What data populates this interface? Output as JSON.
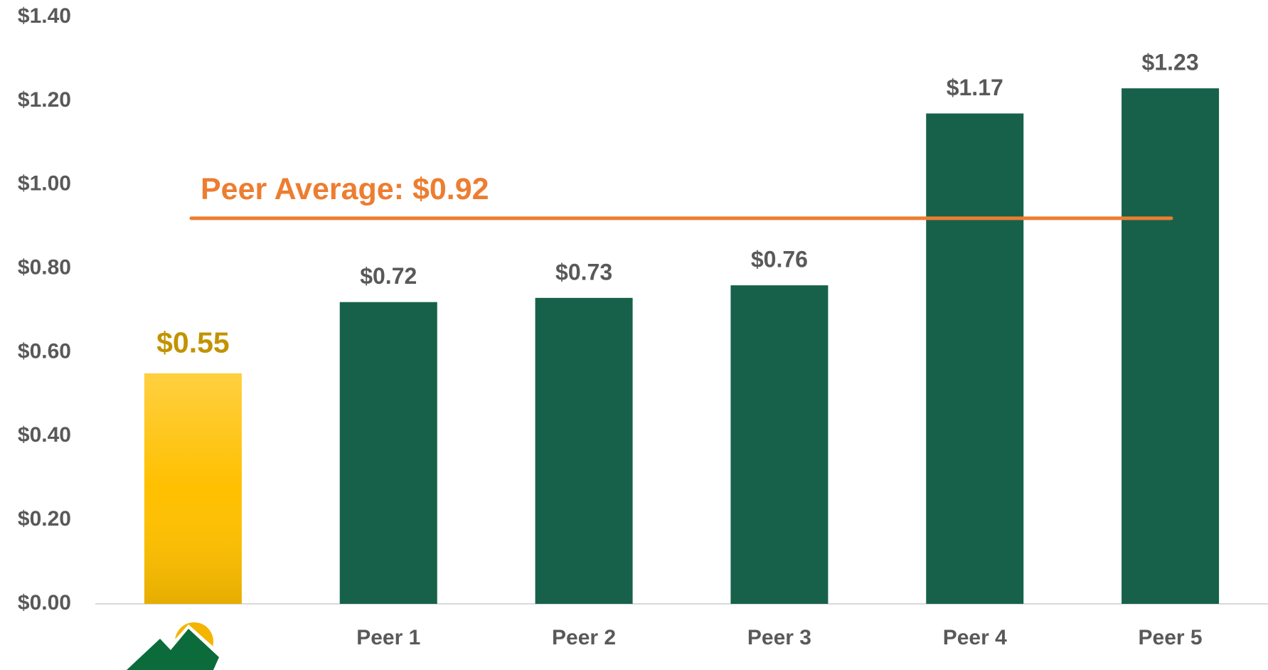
{
  "chart_data": {
    "type": "bar",
    "categories": [
      null,
      "Peer 1",
      "Peer 2",
      "Peer 3",
      "Peer 4",
      "Peer 5"
    ],
    "values": [
      0.55,
      0.72,
      0.73,
      0.76,
      1.17,
      1.23
    ],
    "value_labels": [
      "$0.55",
      "$0.72",
      "$0.73",
      "$0.76",
      "$1.17",
      "$1.23"
    ],
    "colors": [
      "#ffc000",
      "#17614b",
      "#17614b",
      "#17614b",
      "#17614b",
      "#17614b"
    ],
    "value_label_colors": [
      "#c29300",
      "#595959",
      "#595959",
      "#595959",
      "#595959",
      "#595959"
    ],
    "ylim": [
      0,
      1.4
    ],
    "yticks": [
      {
        "value": 0,
        "label": "$0.00"
      },
      {
        "value": 0.2,
        "label": "$0.20"
      },
      {
        "value": 0.4,
        "label": "$0.40"
      },
      {
        "value": 0.6,
        "label": "$0.60"
      },
      {
        "value": 0.8,
        "label": "$0.80"
      },
      {
        "value": 1.0,
        "label": "$1.00"
      },
      {
        "value": 1.2,
        "label": "$1.20"
      },
      {
        "value": 1.4,
        "label": "$1.40"
      }
    ],
    "grid": false,
    "reference_line": {
      "label": "Peer Average: $0.92",
      "value": 0.92,
      "color": "#ed7d31"
    }
  }
}
